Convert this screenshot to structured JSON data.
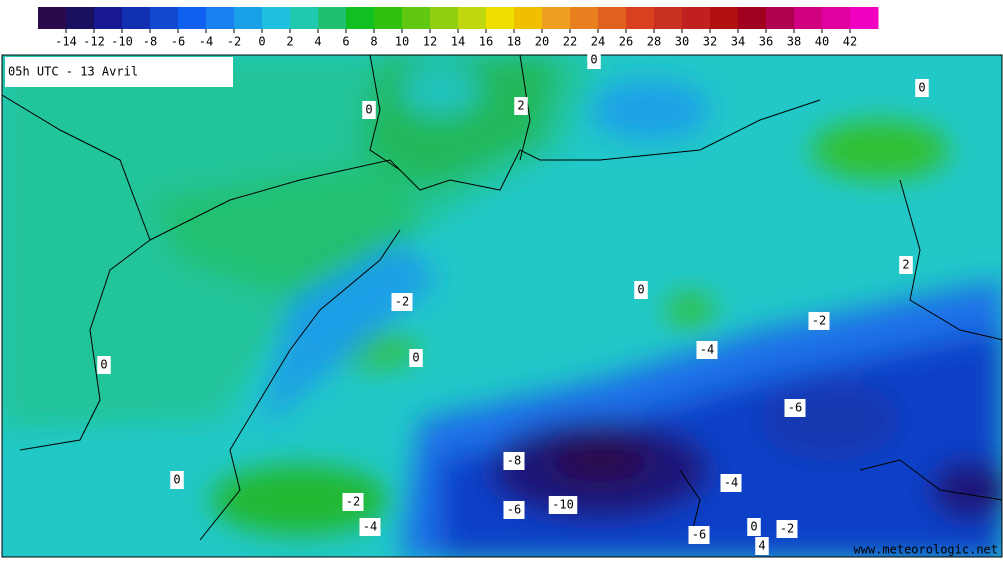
{
  "header": {
    "title": "05h UTC - 13 Avril",
    "watermark": "www.meteorologic.net"
  },
  "colorbar": {
    "range": [
      -16,
      44
    ],
    "ticks": [
      -14,
      -12,
      -10,
      -8,
      -6,
      -4,
      -2,
      0,
      2,
      4,
      6,
      8,
      10,
      12,
      14,
      16,
      18,
      20,
      22,
      24,
      26,
      28,
      30,
      32,
      34,
      36,
      38,
      40,
      42
    ],
    "colors": [
      "#2a0a4a",
      "#1a1060",
      "#181890",
      "#1030b0",
      "#1048d0",
      "#1060f0",
      "#1a80f0",
      "#1aa0e8",
      "#20c0e0",
      "#20c8b0",
      "#20c070",
      "#10c020",
      "#30c010",
      "#60c810",
      "#90d010",
      "#c0d810",
      "#f0e000",
      "#f0c000",
      "#f0a020",
      "#e88020",
      "#e06020",
      "#d84020",
      "#c83020",
      "#c02020",
      "#b01010",
      "#a00020",
      "#b00050",
      "#d00080",
      "#e000a0",
      "#f000c0"
    ]
  },
  "contour_labels": [
    0,
    2,
    0,
    0,
    2,
    0,
    -2,
    0,
    -2,
    -4,
    0,
    -6,
    -8,
    0,
    -4,
    -10,
    -6,
    -2,
    -4,
    0,
    -2,
    -6,
    4
  ]
}
